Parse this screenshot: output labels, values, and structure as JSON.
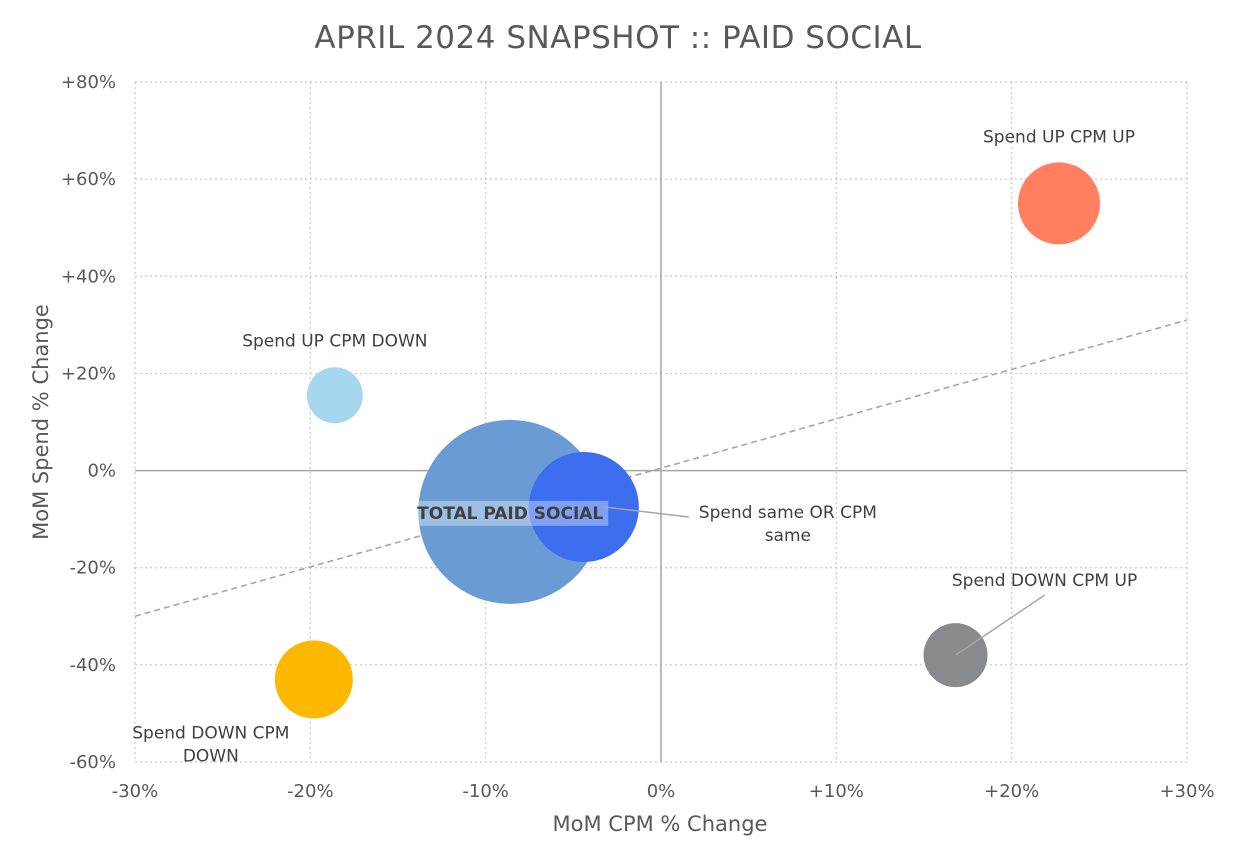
{
  "chart_data": {
    "type": "scatter",
    "title": "APRIL 2024 SNAPSHOT :: PAID SOCIAL",
    "xlabel": "MoM CPM % Change",
    "ylabel": "MoM Spend % Change",
    "xlim": [
      -30,
      30
    ],
    "ylim": [
      -60,
      80
    ],
    "x_ticks": [
      {
        "value": -30,
        "label": "-30%"
      },
      {
        "value": -20,
        "label": "-20%"
      },
      {
        "value": -10,
        "label": "-10%"
      },
      {
        "value": 0,
        "label": "0%"
      },
      {
        "value": 10,
        "label": "+10%"
      },
      {
        "value": 20,
        "label": "+20%"
      },
      {
        "value": 30,
        "label": "+30%"
      }
    ],
    "y_ticks": [
      {
        "value": 80,
        "label": "+80%"
      },
      {
        "value": 60,
        "label": "+60%"
      },
      {
        "value": 40,
        "label": "+40%"
      },
      {
        "value": 20,
        "label": "+20%"
      },
      {
        "value": 0,
        "label": "0%"
      },
      {
        "value": -20,
        "label": "-20%"
      },
      {
        "value": -40,
        "label": "-40%"
      },
      {
        "value": -60,
        "label": "-60%"
      }
    ],
    "grid": true,
    "trendline": {
      "style": "dashed",
      "color": "#a6a6a6",
      "points": [
        [
          -30,
          -30
        ],
        [
          30,
          31
        ]
      ]
    },
    "bubbles": [
      {
        "label": "TOTAL PAID SOCIAL",
        "x": -8.6,
        "y": -8.5,
        "size": 92,
        "color": "#6a9bd4",
        "bold": true
      },
      {
        "label": "Spend same OR CPM same",
        "x": -4.4,
        "y": -7.5,
        "size": 55,
        "color": "#3d6ef0",
        "bold": false
      },
      {
        "label": "Spend UP CPM UP",
        "x": 22.7,
        "y": 55,
        "size": 41,
        "color": "#ff7f5f",
        "bold": false
      },
      {
        "label": "Spend UP CPM DOWN",
        "x": -18.6,
        "y": 15.5,
        "size": 28,
        "color": "#a5d8ef",
        "bold": false
      },
      {
        "label": "Spend DOWN CPM UP",
        "x": 16.8,
        "y": -38,
        "size": 32,
        "color": "#888b8d",
        "bold": false
      },
      {
        "label": "Spend DOWN CPM DOWN",
        "x": -19.8,
        "y": -43,
        "size": 39,
        "color": "#ffb800",
        "bold": false
      }
    ]
  }
}
